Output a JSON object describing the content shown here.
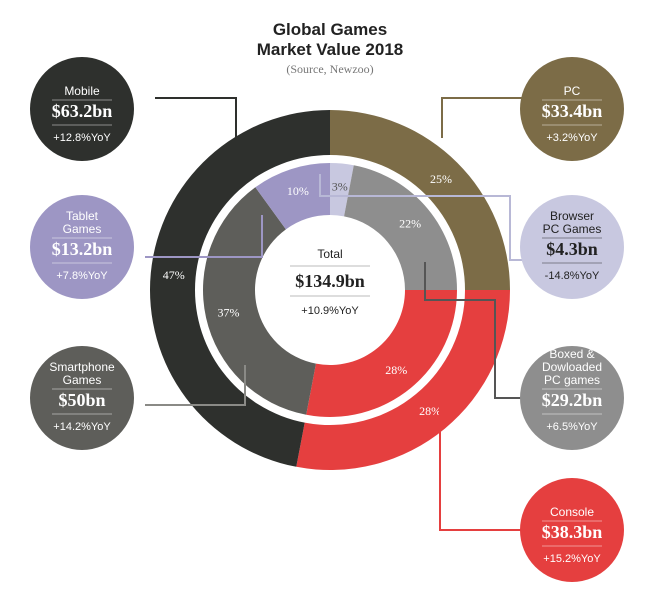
{
  "title_line1": "Global Games",
  "title_line2": "Market Value 2018",
  "source": "(Source, Newzoo)",
  "total": {
    "name": "Total",
    "value": "$134.9bn",
    "yoy": "+10.9%YoY"
  },
  "colors": {
    "mobile": "#2e302d",
    "pc": "#7c6c47",
    "console": "#e53f3f",
    "tablet": "#9d96c4",
    "browser": "#c8c8e0",
    "boxed": "#8e8e8e",
    "smartphone": "#5e5e5a"
  },
  "chart_data": {
    "type": "pie",
    "title": "Global Games Market Value 2018",
    "outer_ring": [
      {
        "name": "PC",
        "percent": 25,
        "label": "25%"
      },
      {
        "name": "Console",
        "percent": 28,
        "label": "28%"
      },
      {
        "name": "Mobile",
        "percent": 47,
        "label": "47%"
      }
    ],
    "inner_ring": [
      {
        "name": "Browser PC Games",
        "percent": 3,
        "label": "3%"
      },
      {
        "name": "Boxed & Dowloaded PC games",
        "percent": 22,
        "label": "22%"
      },
      {
        "name": "Console",
        "percent": 28,
        "label": "28%"
      },
      {
        "name": "Smartphone Games",
        "percent": 37,
        "label": "37%"
      },
      {
        "name": "Tablet Games",
        "percent": 10,
        "label": "10%"
      }
    ],
    "segments": [
      {
        "key": "mobile",
        "name_lines": [
          "Mobile"
        ],
        "value": "$63.2bn",
        "value_bn": 63.2,
        "yoy": "+12.8%YoY"
      },
      {
        "key": "pc",
        "name_lines": [
          "PC"
        ],
        "value": "$33.4bn",
        "value_bn": 33.4,
        "yoy": "+3.2%YoY"
      },
      {
        "key": "tablet",
        "name_lines": [
          "Tablet",
          "Games"
        ],
        "value": "$13.2bn",
        "value_bn": 13.2,
        "yoy": "+7.8%YoY"
      },
      {
        "key": "browser",
        "name_lines": [
          "Browser",
          "PC Games"
        ],
        "value": "$4.3bn",
        "value_bn": 4.3,
        "yoy": "-14.8%YoY"
      },
      {
        "key": "smartphone",
        "name_lines": [
          "Smartphone",
          "Games"
        ],
        "value": "$50bn",
        "value_bn": 50,
        "yoy": "+14.2%YoY"
      },
      {
        "key": "boxed",
        "name_lines": [
          "Boxed &",
          "Dowloaded",
          "PC games"
        ],
        "value": "$29.2bn",
        "value_bn": 29.2,
        "yoy": "+6.5%YoY"
      },
      {
        "key": "console",
        "name_lines": [
          "Console"
        ],
        "value": "$38.3bn",
        "value_bn": 38.3,
        "yoy": "+15.2%YoY"
      }
    ]
  }
}
